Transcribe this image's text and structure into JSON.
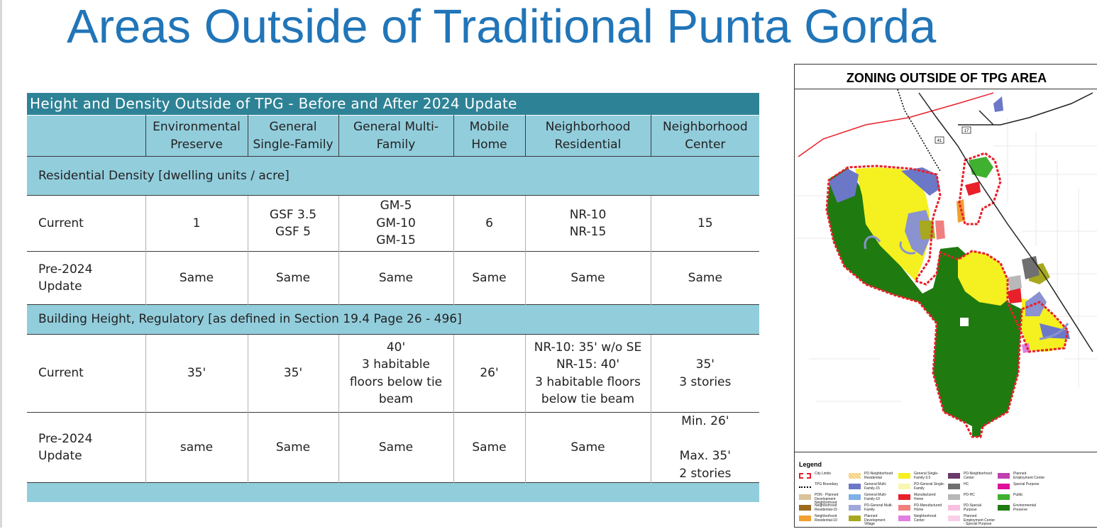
{
  "slide": {
    "title": "Areas Outside of Traditional Punta Gorda"
  },
  "table": {
    "title": "Height and Density Outside of TPG - Before and After 2024 Update",
    "columns": [
      "Environmental\nPreserve",
      "General\nSingle-Family",
      "General Multi-\nFamily",
      "Mobile\nHome",
      "Neighborhood\nResidential",
      "Neighborhood\nCenter"
    ],
    "sections": [
      {
        "label": "Residential Density [dwelling units / acre]",
        "rows": [
          {
            "label": "Current",
            "cells": [
              "1",
              "GSF 3.5\nGSF 5",
              "GM-5\nGM-10\nGM-15",
              "6",
              "NR-10\nNR-15",
              "15"
            ]
          },
          {
            "label": "Pre-2024\nUpdate",
            "cells": [
              "Same",
              "Same",
              "Same",
              "Same",
              "Same",
              "Same"
            ]
          }
        ]
      },
      {
        "label": "Building Height, Regulatory [as defined in Section 19.4 Page 26 - 496]",
        "rows": [
          {
            "label": "Current",
            "cells": [
              "35'",
              "35'",
              "40'\n3 habitable\nfloors below tie\nbeam",
              "26'",
              "NR-10: 35' w/o SE\nNR-15: 40'\n3 habitable floors\nbelow tie beam",
              "35'\n3 stories"
            ]
          },
          {
            "label": "Pre-2024\nUpdate",
            "cells": [
              "same",
              "Same",
              "Same",
              "Same",
              "Same",
              "Min. 26'\n\nMax. 35'\n2 stories"
            ]
          }
        ]
      }
    ]
  },
  "map": {
    "title": "ZONING OUTSIDE OF TPG AREA",
    "road_labels": [
      "41",
      "17"
    ],
    "legend_title": "Legend",
    "legend": [
      {
        "label": "City Limits",
        "color": "#ffffff",
        "icon": "dashed-red-outline"
      },
      {
        "label": "TPG Boundary",
        "color": "#000000",
        "icon": "dotted-line"
      },
      {
        "label": "PDN - Planned\nDevelopment\nNeighborhood",
        "color": "#d9c39a"
      },
      {
        "label": "Neighborhood\nResidential-15",
        "color": "#9c6a1c"
      },
      {
        "label": "Neighborhood\nResidential-10",
        "color": "#f0a030"
      },
      {
        "label": "PD-Neighborhood\nResidential",
        "color": "#fbe6b0",
        "icon": "hatched"
      },
      {
        "label": "General Multi-\nFamily-15",
        "color": "#6b78c8"
      },
      {
        "label": "General Multi-\nFamily-10",
        "color": "#7fb0e8"
      },
      {
        "label": "PD-General Multi-\nFamily",
        "color": "#a0a8d8"
      },
      {
        "label": "Planned\nDevelopment\nVillage",
        "color": "#a8a820"
      },
      {
        "label": "General Single-\nFamily-3.5",
        "color": "#f5f020"
      },
      {
        "label": "PD-General Single-\nFamily",
        "color": "#f7f7b0"
      },
      {
        "label": "Manufactured Home",
        "color": "#e8202a"
      },
      {
        "label": "PD-Manufactured\nHome",
        "color": "#f08080"
      },
      {
        "label": "Neighborhood\nCenter",
        "color": "#e080e0"
      },
      {
        "label": "PD-Neighborhood\nCenter",
        "color": "#6a3a6a"
      },
      {
        "label": "HC",
        "color": "#707070"
      },
      {
        "label": "PD-HC",
        "color": "#b8b8b8"
      },
      {
        "label": "PD-Special Purpose",
        "color": "#f7c0e0"
      },
      {
        "label": "Planned\nEmployment Center\n- Special Purpose",
        "color": "#f7d0e8"
      },
      {
        "label": "Planned\nEmployment Center",
        "color": "#c040b0"
      },
      {
        "label": "Special Purpose",
        "color": "#e0109a"
      },
      {
        "label": "Public",
        "color": "#40b030"
      },
      {
        "label": "Environmental\nPreserve",
        "color": "#1f7a10"
      }
    ],
    "colors": {
      "preserve": "#1f7a10",
      "single_family": "#f5f020",
      "multi_family": "#6b78c8",
      "city_limits": "#e8202a",
      "public": "#40b030"
    }
  }
}
